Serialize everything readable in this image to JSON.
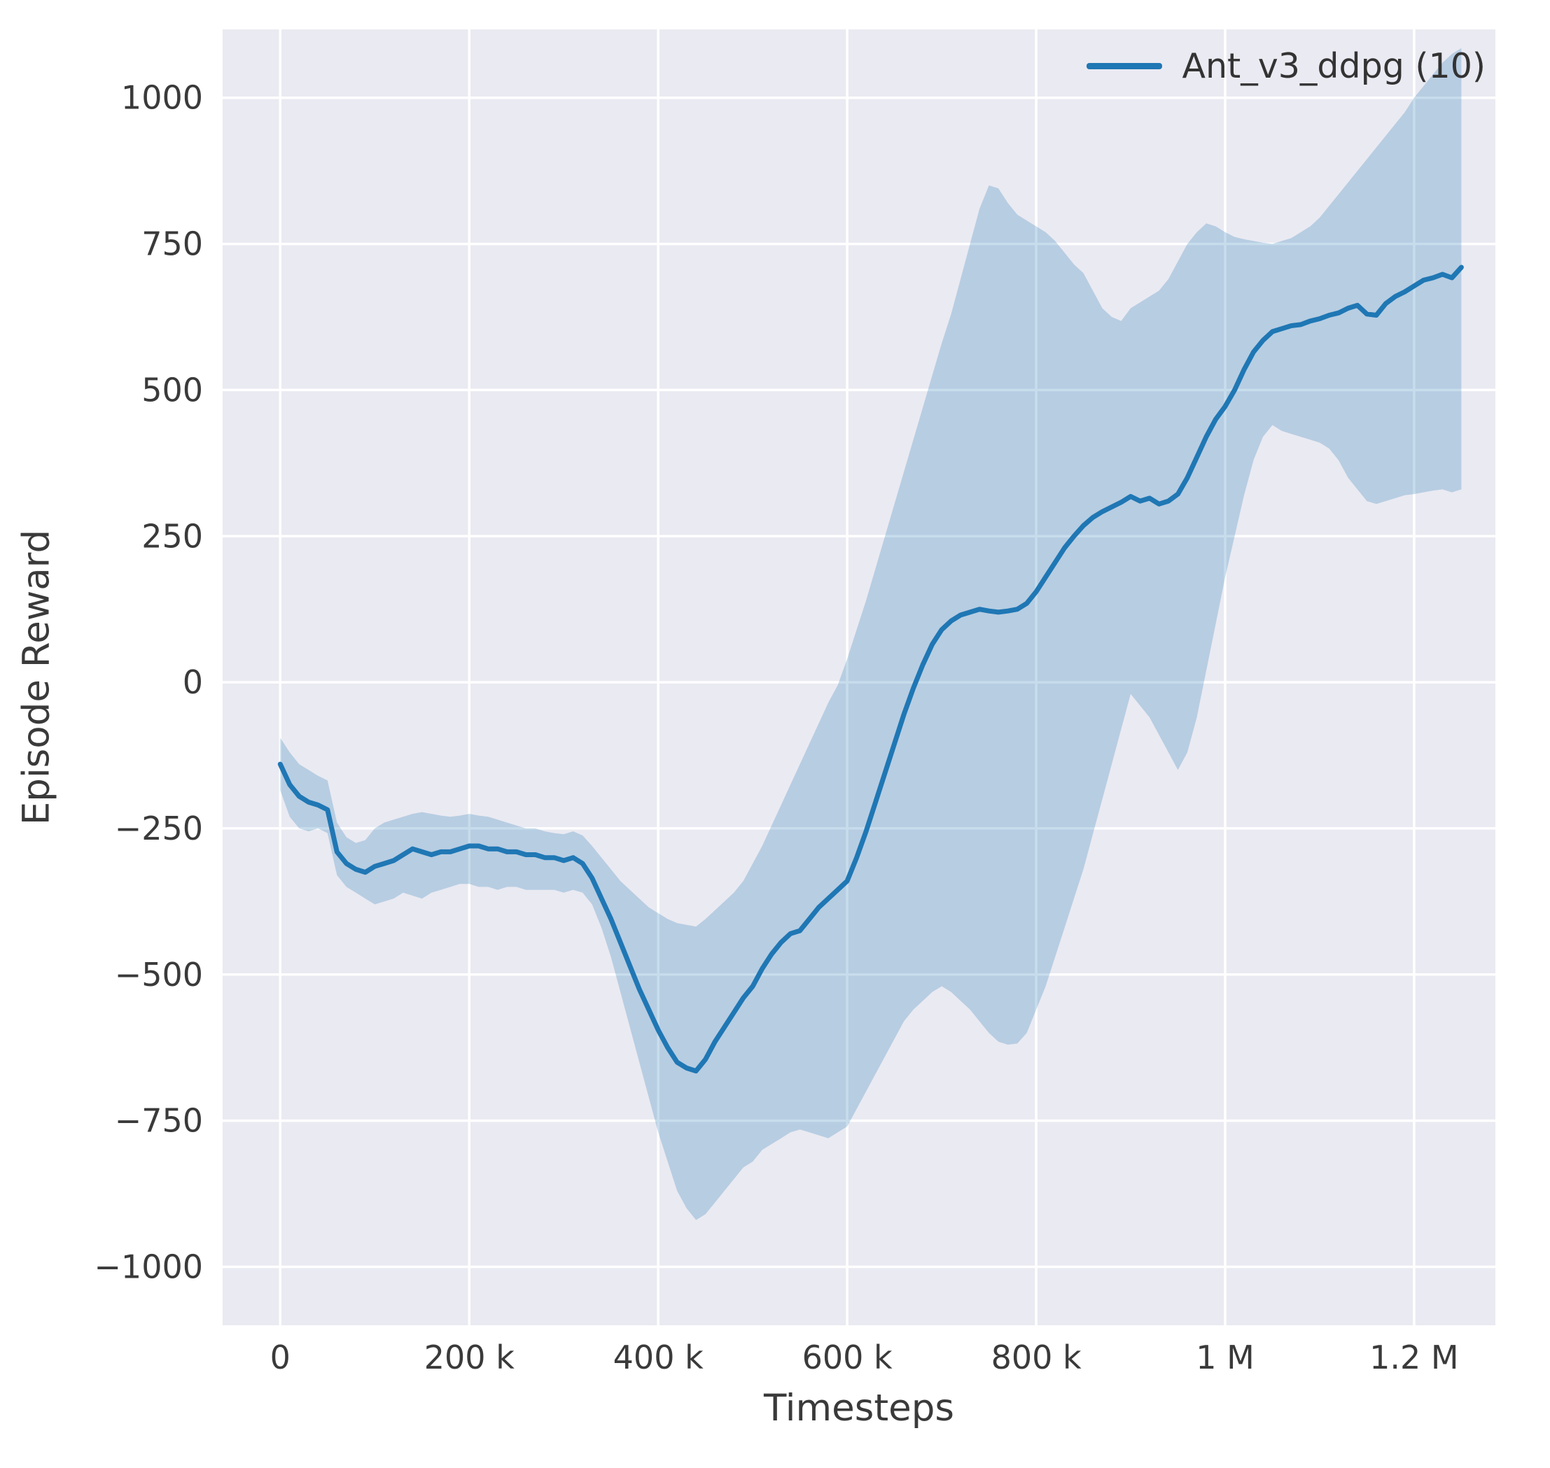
{
  "figure": {
    "legend_label": "Ant_v3_ddpg (10)"
  },
  "chart_data": {
    "type": "line",
    "title": "",
    "xlabel": "Timesteps",
    "ylabel": "Episode Reward",
    "legend": [
      "Ant_v3_ddpg (10)"
    ],
    "legend_position": "upper right",
    "grid": true,
    "xlim": [
      -61000,
      1286000
    ],
    "ylim": [
      -1100,
      1117
    ],
    "x_ticks": [
      {
        "value": 0,
        "label": "0"
      },
      {
        "value": 200000,
        "label": "200 k"
      },
      {
        "value": 400000,
        "label": "400 k"
      },
      {
        "value": 600000,
        "label": "600 k"
      },
      {
        "value": 800000,
        "label": "800 k"
      },
      {
        "value": 1000000,
        "label": "1 M"
      },
      {
        "value": 1200000,
        "label": "1.2 M"
      }
    ],
    "y_ticks": [
      {
        "value": -1000,
        "label": "−1000"
      },
      {
        "value": -750,
        "label": "−750"
      },
      {
        "value": -500,
        "label": "−500"
      },
      {
        "value": -250,
        "label": "−250"
      },
      {
        "value": 0,
        "label": "0"
      },
      {
        "value": 250,
        "label": "250"
      },
      {
        "value": 500,
        "label": "500"
      },
      {
        "value": 750,
        "label": "750"
      },
      {
        "value": 1000,
        "label": "1000"
      }
    ],
    "x": [
      0,
      10000,
      20000,
      30000,
      40000,
      50000,
      60000,
      70000,
      80000,
      90000,
      100000,
      110000,
      120000,
      130000,
      140000,
      150000,
      160000,
      170000,
      180000,
      190000,
      200000,
      210000,
      220000,
      230000,
      240000,
      250000,
      260000,
      270000,
      280000,
      290000,
      300000,
      310000,
      320000,
      330000,
      340000,
      350000,
      360000,
      370000,
      380000,
      390000,
      400000,
      410000,
      420000,
      430000,
      440000,
      450000,
      460000,
      470000,
      480000,
      490000,
      500000,
      510000,
      520000,
      530000,
      540000,
      550000,
      560000,
      570000,
      580000,
      590000,
      600000,
      610000,
      620000,
      630000,
      640000,
      650000,
      660000,
      670000,
      680000,
      690000,
      700000,
      710000,
      720000,
      730000,
      740000,
      750000,
      760000,
      770000,
      780000,
      790000,
      800000,
      810000,
      820000,
      830000,
      840000,
      850000,
      860000,
      870000,
      880000,
      890000,
      900000,
      910000,
      920000,
      930000,
      940000,
      950000,
      960000,
      970000,
      980000,
      990000,
      1000000,
      1010000,
      1020000,
      1030000,
      1040000,
      1050000,
      1060000,
      1070000,
      1080000,
      1090000,
      1100000,
      1110000,
      1120000,
      1130000,
      1140000,
      1150000,
      1160000,
      1170000,
      1180000,
      1190000,
      1200000,
      1210000,
      1220000,
      1230000,
      1240000,
      1250000
    ],
    "series": [
      {
        "name": "Ant_v3_ddpg (10)",
        "mean": [
          -140,
          -175,
          -195,
          -205,
          -210,
          -218,
          -290,
          -310,
          -320,
          -325,
          -315,
          -310,
          -305,
          -295,
          -285,
          -290,
          -295,
          -290,
          -290,
          -285,
          -280,
          -280,
          -285,
          -285,
          -290,
          -290,
          -295,
          -295,
          -300,
          -300,
          -305,
          -300,
          -310,
          -335,
          -370,
          -405,
          -445,
          -485,
          -525,
          -560,
          -595,
          -625,
          -650,
          -660,
          -665,
          -645,
          -615,
          -590,
          -565,
          -540,
          -520,
          -490,
          -465,
          -445,
          -430,
          -425,
          -405,
          -385,
          -370,
          -355,
          -340,
          -300,
          -255,
          -205,
          -155,
          -105,
          -55,
          -10,
          30,
          65,
          90,
          105,
          115,
          120,
          125,
          122,
          120,
          122,
          125,
          135,
          155,
          180,
          205,
          230,
          250,
          268,
          282,
          292,
          300,
          308,
          318,
          310,
          315,
          305,
          310,
          322,
          350,
          385,
          420,
          450,
          472,
          500,
          535,
          565,
          585,
          600,
          605,
          610,
          612,
          618,
          622,
          628,
          632,
          640,
          645,
          630,
          628,
          648,
          660,
          668,
          678,
          688,
          692,
          698,
          692,
          710
        ],
        "lower": [
          -185,
          -230,
          -250,
          -255,
          -250,
          -258,
          -330,
          -350,
          -360,
          -370,
          -380,
          -375,
          -370,
          -360,
          -365,
          -370,
          -360,
          -355,
          -350,
          -345,
          -345,
          -350,
          -350,
          -355,
          -350,
          -350,
          -355,
          -355,
          -355,
          -355,
          -360,
          -355,
          -360,
          -380,
          -420,
          -470,
          -530,
          -590,
          -650,
          -710,
          -770,
          -820,
          -870,
          -900,
          -920,
          -910,
          -890,
          -870,
          -850,
          -830,
          -820,
          -800,
          -790,
          -780,
          -770,
          -765,
          -770,
          -775,
          -780,
          -770,
          -760,
          -730,
          -700,
          -670,
          -640,
          -610,
          -580,
          -560,
          -545,
          -530,
          -520,
          -530,
          -545,
          -560,
          -580,
          -600,
          -615,
          -620,
          -618,
          -600,
          -560,
          -520,
          -470,
          -420,
          -370,
          -320,
          -260,
          -200,
          -140,
          -80,
          -20,
          -40,
          -60,
          -90,
          -120,
          -150,
          -120,
          -60,
          20,
          100,
          180,
          250,
          320,
          380,
          420,
          440,
          430,
          425,
          420,
          415,
          410,
          400,
          380,
          350,
          330,
          310,
          305,
          310,
          315,
          320,
          322,
          325,
          328,
          330,
          325,
          330
        ],
        "upper": [
          -95,
          -120,
          -140,
          -150,
          -160,
          -168,
          -240,
          -265,
          -275,
          -270,
          -250,
          -240,
          -235,
          -230,
          -225,
          -222,
          -225,
          -228,
          -230,
          -228,
          -225,
          -228,
          -230,
          -235,
          -240,
          -245,
          -250,
          -250,
          -255,
          -258,
          -260,
          -255,
          -262,
          -280,
          -300,
          -320,
          -340,
          -355,
          -370,
          -385,
          -395,
          -405,
          -412,
          -415,
          -418,
          -405,
          -390,
          -375,
          -360,
          -340,
          -310,
          -280,
          -245,
          -210,
          -175,
          -140,
          -105,
          -70,
          -35,
          -5,
          40,
          90,
          140,
          195,
          250,
          305,
          360,
          415,
          470,
          525,
          580,
          630,
          690,
          750,
          810,
          850,
          845,
          820,
          800,
          790,
          780,
          770,
          755,
          735,
          715,
          700,
          670,
          640,
          625,
          618,
          640,
          650,
          660,
          670,
          690,
          720,
          750,
          770,
          785,
          780,
          770,
          762,
          758,
          755,
          752,
          750,
          755,
          760,
          770,
          780,
          795,
          815,
          835,
          855,
          875,
          895,
          915,
          935,
          955,
          975,
          1000,
          1020,
          1040,
          1060,
          1075,
          1085
        ]
      }
    ],
    "colors": {
      "line": "#1f77b4",
      "band": "rgba(31,119,180,0.25)",
      "plot_bg": "#eaeaf2",
      "grid": "#ffffff",
      "text": "#3a3a3a"
    }
  }
}
